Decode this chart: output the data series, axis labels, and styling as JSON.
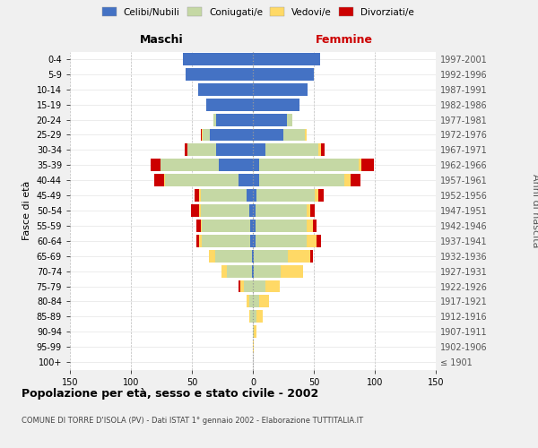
{
  "age_groups": [
    "100+",
    "95-99",
    "90-94",
    "85-89",
    "80-84",
    "75-79",
    "70-74",
    "65-69",
    "60-64",
    "55-59",
    "50-54",
    "45-49",
    "40-44",
    "35-39",
    "30-34",
    "25-29",
    "20-24",
    "15-19",
    "10-14",
    "5-9",
    "0-4"
  ],
  "birth_years": [
    "≤ 1901",
    "1902-1906",
    "1907-1911",
    "1912-1916",
    "1917-1921",
    "1922-1926",
    "1927-1931",
    "1932-1936",
    "1937-1941",
    "1942-1946",
    "1947-1951",
    "1952-1956",
    "1957-1961",
    "1962-1966",
    "1967-1971",
    "1972-1976",
    "1977-1981",
    "1982-1986",
    "1987-1991",
    "1992-1996",
    "1997-2001"
  ],
  "males": {
    "celibi": [
      0,
      0,
      0,
      0,
      0,
      0,
      1,
      1,
      2,
      2,
      3,
      5,
      12,
      28,
      30,
      35,
      30,
      38,
      45,
      55,
      57
    ],
    "coniugati": [
      0,
      0,
      0,
      2,
      3,
      7,
      20,
      30,
      40,
      40,
      40,
      38,
      60,
      48,
      24,
      6,
      2,
      0,
      0,
      0,
      0
    ],
    "vedovi": [
      0,
      0,
      0,
      1,
      2,
      3,
      5,
      5,
      2,
      1,
      1,
      1,
      1,
      0,
      0,
      1,
      0,
      0,
      0,
      0,
      0
    ],
    "divorziati": [
      0,
      0,
      0,
      0,
      0,
      2,
      0,
      0,
      2,
      3,
      7,
      4,
      8,
      8,
      2,
      1,
      0,
      0,
      0,
      0,
      0
    ]
  },
  "females": {
    "nubili": [
      0,
      0,
      0,
      0,
      0,
      0,
      1,
      1,
      2,
      2,
      2,
      3,
      5,
      5,
      10,
      25,
      28,
      38,
      45,
      50,
      55
    ],
    "coniugate": [
      0,
      0,
      1,
      3,
      5,
      10,
      22,
      28,
      42,
      42,
      42,
      48,
      70,
      82,
      44,
      18,
      4,
      0,
      0,
      0,
      0
    ],
    "vedove": [
      0,
      1,
      2,
      5,
      8,
      12,
      18,
      18,
      8,
      5,
      3,
      3,
      5,
      2,
      2,
      1,
      0,
      0,
      0,
      0,
      0
    ],
    "divorziate": [
      0,
      0,
      0,
      0,
      0,
      0,
      0,
      2,
      4,
      3,
      4,
      4,
      8,
      10,
      3,
      0,
      0,
      0,
      0,
      0,
      0
    ]
  },
  "colors": {
    "celibi": "#4472C4",
    "coniugati": "#C5D8A4",
    "vedovi": "#FFD966",
    "divorziati": "#CC0000"
  },
  "xlim": 150,
  "title": "Popolazione per età, sesso e stato civile - 2002",
  "subtitle": "COMUNE DI TORRE D'ISOLA (PV) - Dati ISTAT 1° gennaio 2002 - Elaborazione TUTTITALIA.IT",
  "maschi_label": "Maschi",
  "femmine_label": "Femmine",
  "ylabel_left": "Fasce di età",
  "ylabel_right": "Anni di nascita",
  "legend_labels": [
    "Celibi/Nubili",
    "Coniugati/e",
    "Vedovi/e",
    "Divorziati/e"
  ],
  "bg_color": "#f0f0f0",
  "plot_bg_color": "#ffffff"
}
